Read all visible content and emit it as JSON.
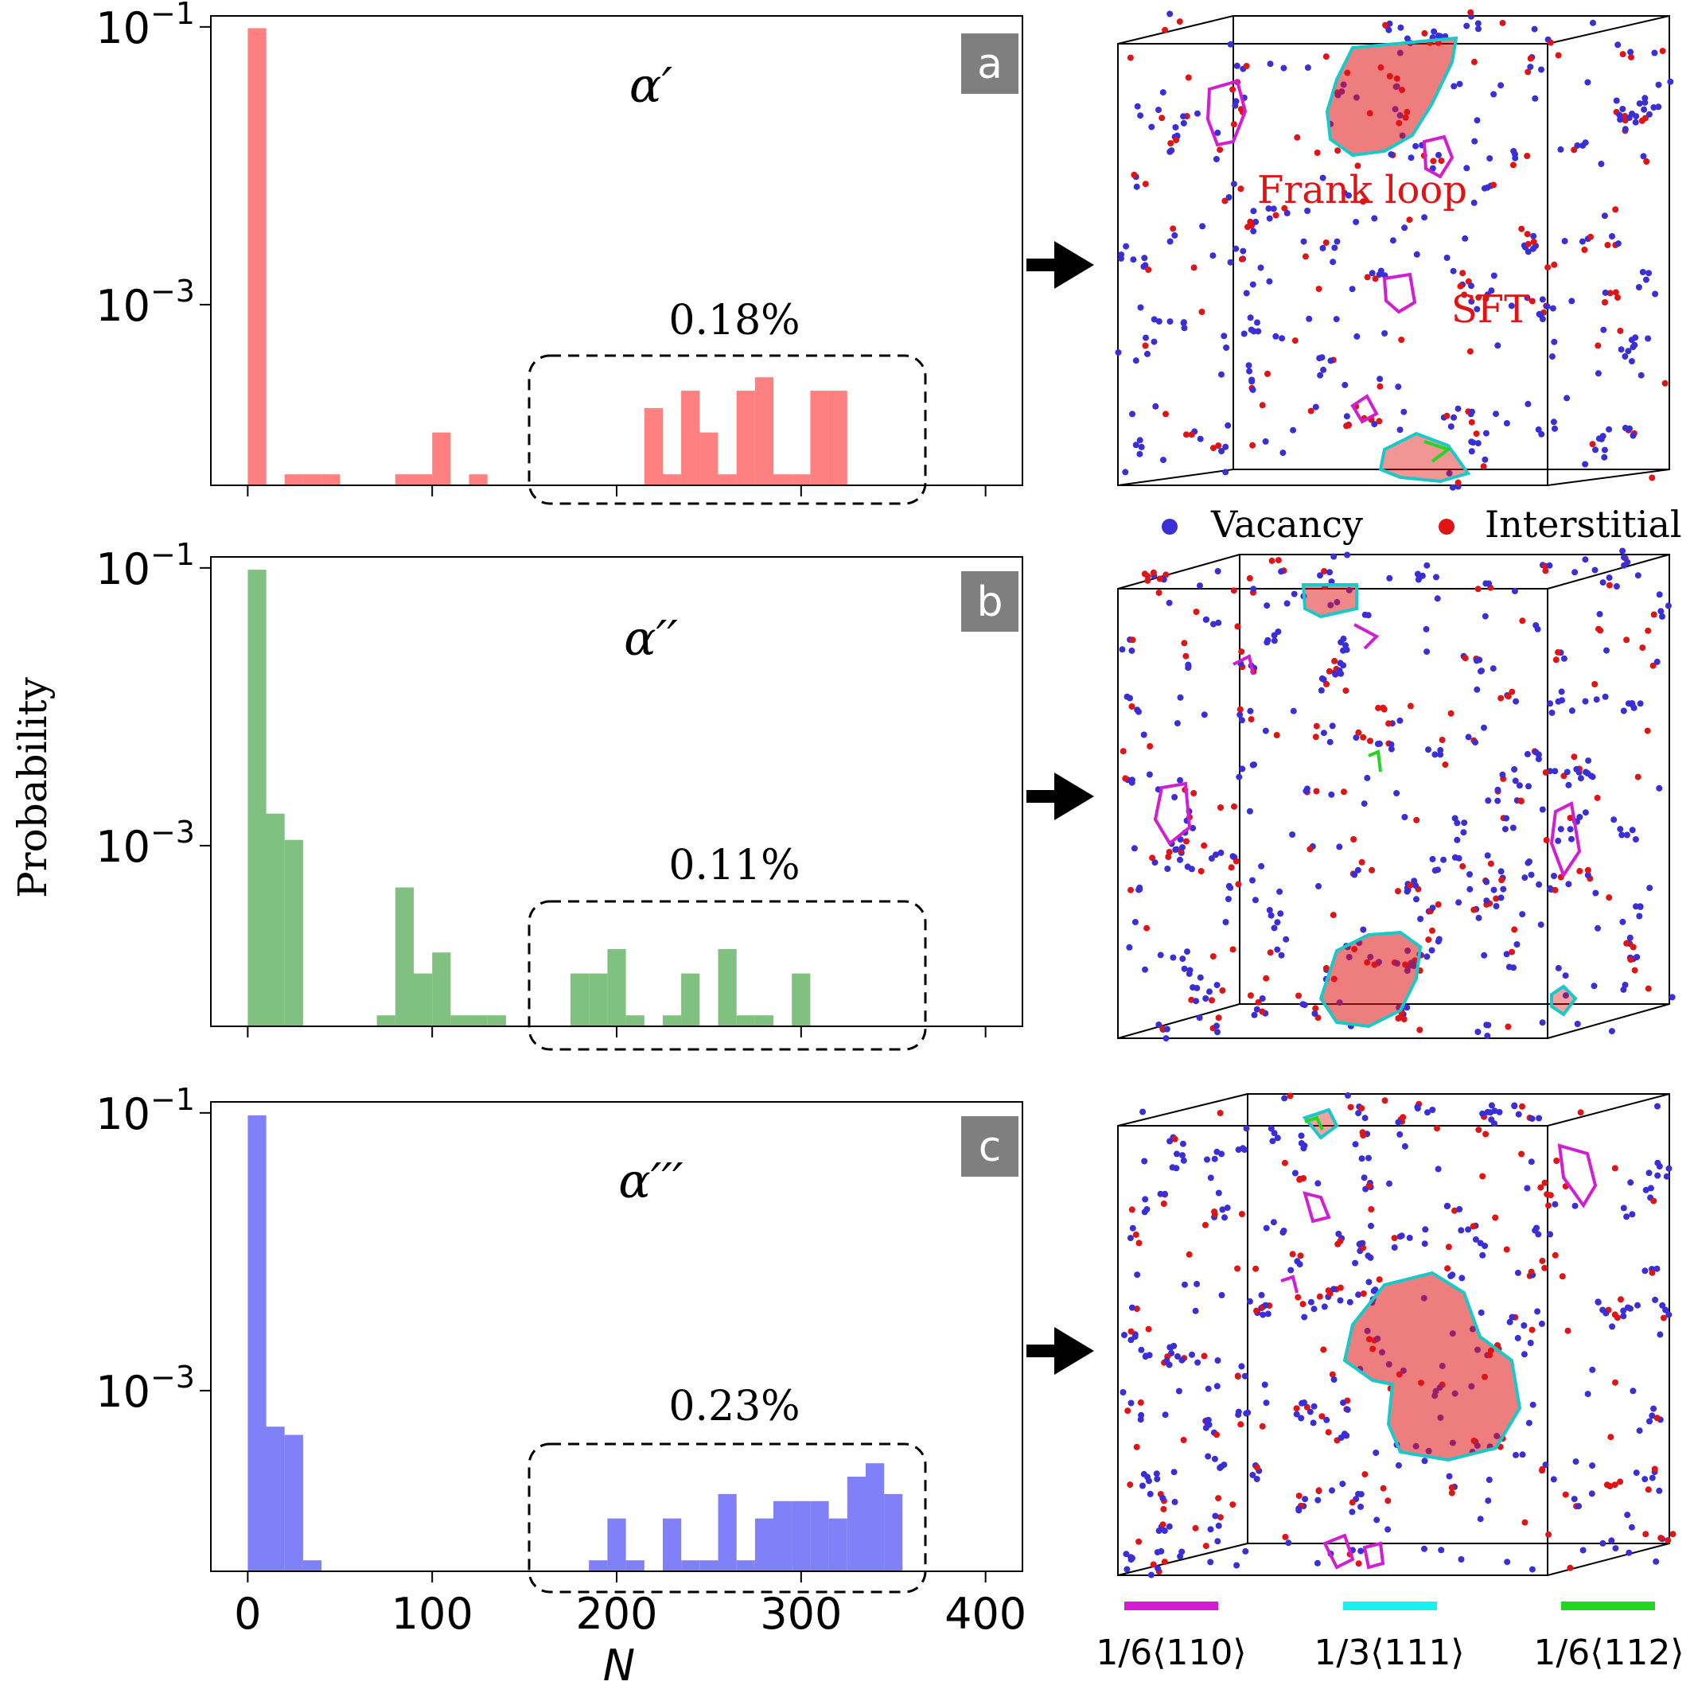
{
  "figure": {
    "y_axis_label": "Probability",
    "x_axis_label": "N",
    "legend_atoms": [
      {
        "label": "Vacancy",
        "color": "#3a2fd6"
      },
      {
        "label": "Interstitial",
        "color": "#e01414"
      }
    ],
    "legend_dislocations": [
      {
        "label": "1/6⟨110⟩",
        "color": "#d21ed2"
      },
      {
        "label": "1/3⟨111⟩",
        "color": "#19f0f0"
      },
      {
        "label": "1/6⟨112⟩",
        "color": "#22d622"
      }
    ],
    "snapshot_labels": [
      "Frank loop",
      "SFT"
    ],
    "colors": {
      "a": "#ff8080",
      "b": "#80c080",
      "c": "#8080f8",
      "vacancy": "#3a2fd6",
      "interstitial": "#e01414",
      "loop_outline": "#19c8c8",
      "sft_outline": "#d21ed2"
    }
  },
  "chart_data": [
    {
      "type": "bar",
      "panel": "a",
      "phase": "α′",
      "annotation": "0.18%",
      "xlim": [
        -20,
        420
      ],
      "ylim": [
        5e-05,
        0.12
      ],
      "yscale": "log",
      "xticks": [
        0,
        100,
        200,
        300,
        400
      ],
      "yticks": [
        {
          "value": 0.1,
          "base": "10",
          "exp": "−1"
        },
        {
          "value": 0.001,
          "base": "10",
          "exp": "−3"
        }
      ],
      "bin_width": 10,
      "bins": [
        {
          "x": 0,
          "y": 0.098
        },
        {
          "x": 20,
          "y": 6e-05
        },
        {
          "x": 30,
          "y": 6e-05
        },
        {
          "x": 40,
          "y": 6e-05
        },
        {
          "x": 80,
          "y": 6e-05
        },
        {
          "x": 90,
          "y": 6e-05
        },
        {
          "x": 100,
          "y": 0.00012
        },
        {
          "x": 120,
          "y": 6e-05
        },
        {
          "x": 215,
          "y": 0.00018
        },
        {
          "x": 225,
          "y": 6e-05
        },
        {
          "x": 235,
          "y": 0.00024
        },
        {
          "x": 245,
          "y": 0.00012
        },
        {
          "x": 255,
          "y": 6e-05
        },
        {
          "x": 265,
          "y": 0.00024
        },
        {
          "x": 275,
          "y": 0.0003
        },
        {
          "x": 285,
          "y": 6e-05
        },
        {
          "x": 295,
          "y": 6e-05
        },
        {
          "x": 305,
          "y": 0.00024
        },
        {
          "x": 315,
          "y": 0.00024
        }
      ]
    },
    {
      "type": "bar",
      "panel": "b",
      "phase": "α′′",
      "annotation": "0.11%",
      "xlim": [
        -20,
        420
      ],
      "ylim": [
        5e-05,
        0.12
      ],
      "yscale": "log",
      "xticks": [
        0,
        100,
        200,
        300,
        400
      ],
      "yticks": [
        {
          "value": 0.1,
          "base": "10",
          "exp": "−1"
        },
        {
          "value": 0.001,
          "base": "10",
          "exp": "−3"
        }
      ],
      "bin_width": 10,
      "bins": [
        {
          "x": 0,
          "y": 0.097
        },
        {
          "x": 10,
          "y": 0.0017
        },
        {
          "x": 20,
          "y": 0.0011
        },
        {
          "x": 70,
          "y": 6e-05
        },
        {
          "x": 80,
          "y": 0.0005
        },
        {
          "x": 90,
          "y": 0.00012
        },
        {
          "x": 100,
          "y": 0.00017
        },
        {
          "x": 110,
          "y": 6e-05
        },
        {
          "x": 120,
          "y": 6e-05
        },
        {
          "x": 130,
          "y": 6e-05
        },
        {
          "x": 175,
          "y": 0.00012
        },
        {
          "x": 185,
          "y": 0.00012
        },
        {
          "x": 195,
          "y": 0.00018
        },
        {
          "x": 205,
          "y": 6e-05
        },
        {
          "x": 225,
          "y": 6e-05
        },
        {
          "x": 235,
          "y": 0.00012
        },
        {
          "x": 255,
          "y": 0.00018
        },
        {
          "x": 265,
          "y": 6e-05
        },
        {
          "x": 275,
          "y": 6e-05
        },
        {
          "x": 295,
          "y": 0.00012
        }
      ]
    },
    {
      "type": "bar",
      "panel": "c",
      "phase": "α′′′",
      "annotation": "0.23%",
      "xlim": [
        -20,
        420
      ],
      "ylim": [
        5e-05,
        0.12
      ],
      "yscale": "log",
      "xticks": [
        0,
        100,
        200,
        300,
        400
      ],
      "yticks": [
        {
          "value": 0.1,
          "base": "10",
          "exp": "−1"
        },
        {
          "value": 0.001,
          "base": "10",
          "exp": "−3"
        }
      ],
      "bin_width": 10,
      "bins": [
        {
          "x": 0,
          "y": 0.096
        },
        {
          "x": 10,
          "y": 0.00055
        },
        {
          "x": 20,
          "y": 0.00048
        },
        {
          "x": 30,
          "y": 6e-05
        },
        {
          "x": 185,
          "y": 6e-05
        },
        {
          "x": 195,
          "y": 0.00012
        },
        {
          "x": 205,
          "y": 6e-05
        },
        {
          "x": 225,
          "y": 0.00012
        },
        {
          "x": 235,
          "y": 6e-05
        },
        {
          "x": 245,
          "y": 6e-05
        },
        {
          "x": 255,
          "y": 0.00018
        },
        {
          "x": 265,
          "y": 6e-05
        },
        {
          "x": 275,
          "y": 0.00012
        },
        {
          "x": 285,
          "y": 0.00016
        },
        {
          "x": 295,
          "y": 0.00016
        },
        {
          "x": 305,
          "y": 0.00016
        },
        {
          "x": 315,
          "y": 0.00012
        },
        {
          "x": 325,
          "y": 0.00024
        },
        {
          "x": 335,
          "y": 0.0003
        },
        {
          "x": 345,
          "y": 0.00018
        }
      ]
    }
  ]
}
